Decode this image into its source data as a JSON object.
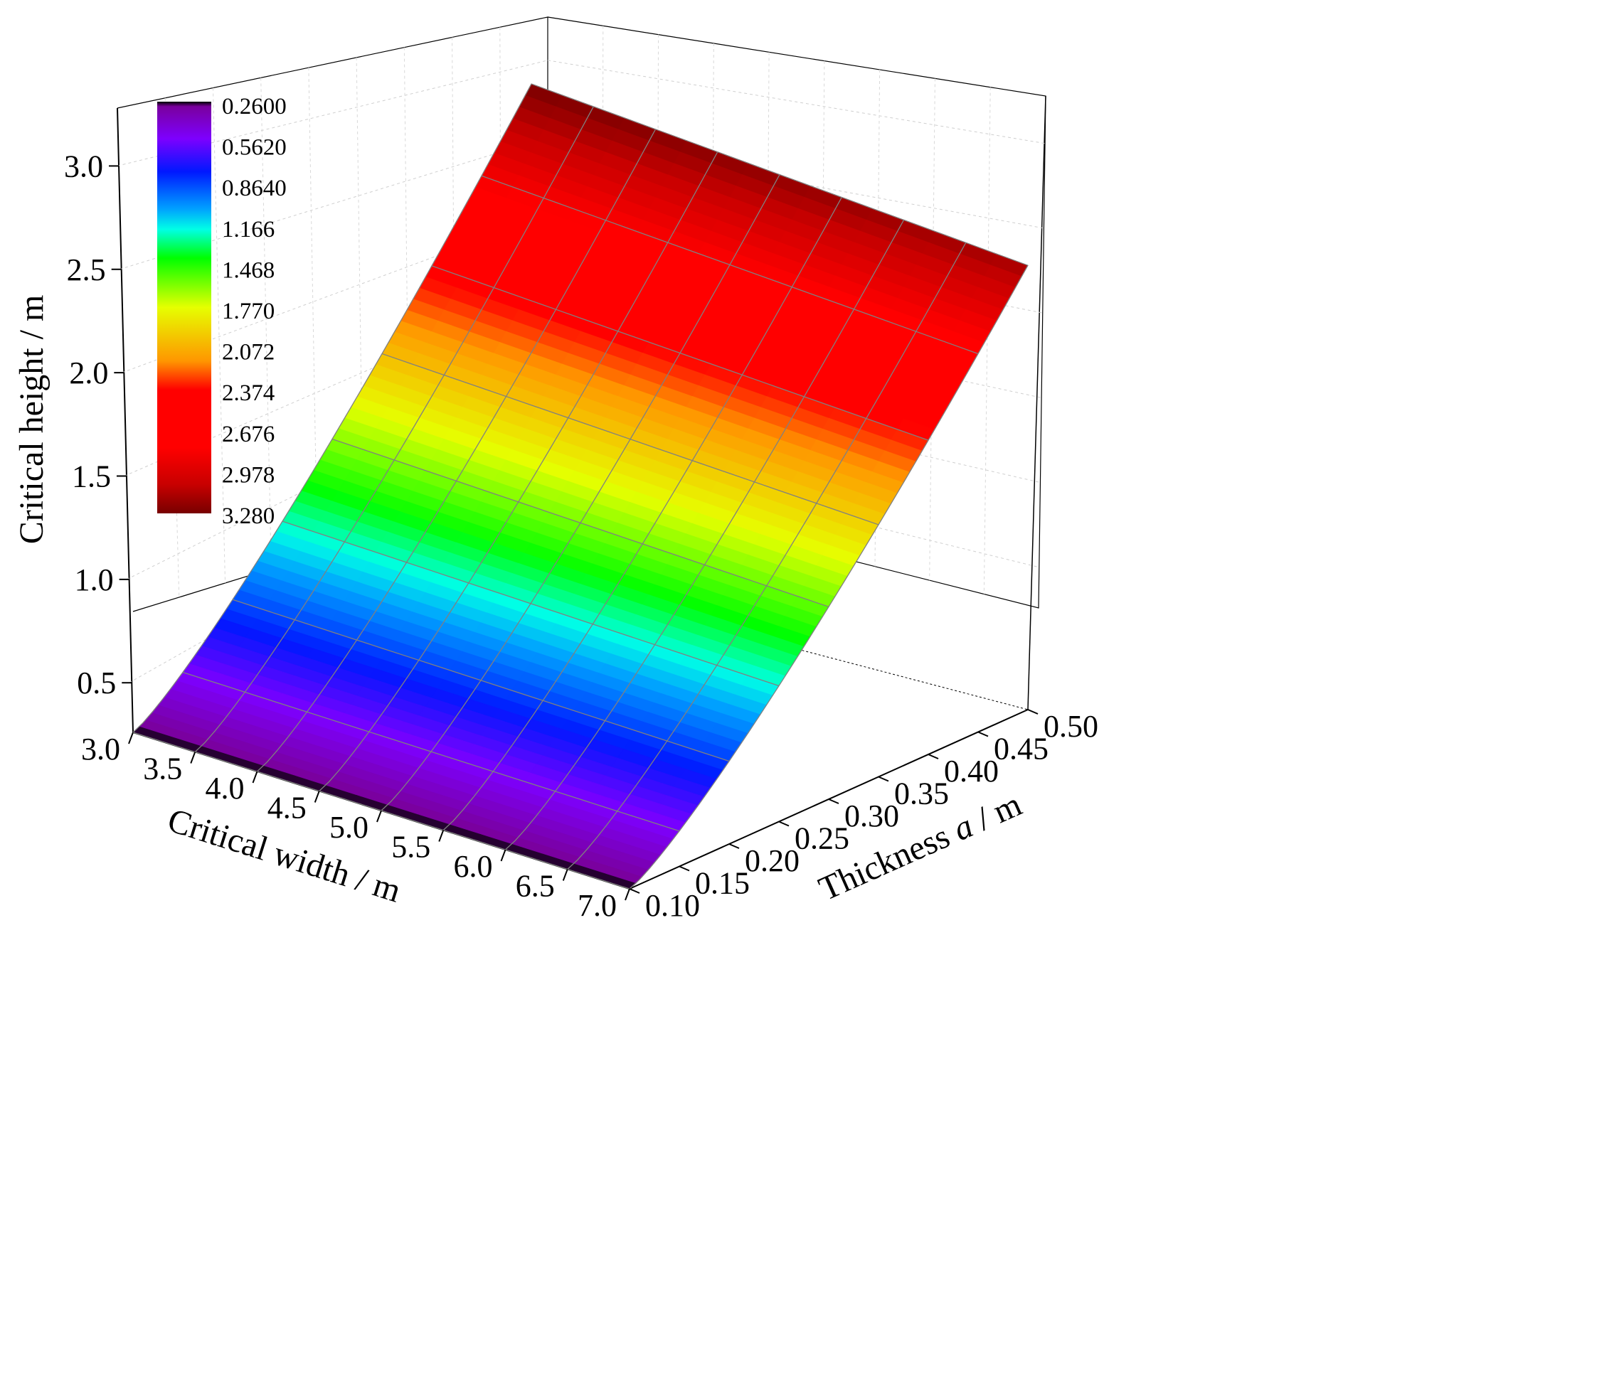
{
  "chart_data": {
    "type": "surface3d",
    "title": "",
    "xlabel": "Critical width / m",
    "ylabel_prefix": "Thickness ",
    "ylabel_var": "a",
    "ylabel_suffix": " / m",
    "zlabel": "Critical height / m",
    "x_ticks": [
      "3.0",
      "3.5",
      "4.0",
      "4.5",
      "5.0",
      "5.5",
      "6.0",
      "6.5",
      "7.0"
    ],
    "y_ticks": [
      "0.10",
      "0.15",
      "0.20",
      "0.25",
      "0.30",
      "0.35",
      "0.40",
      "0.45",
      "0.50"
    ],
    "z_ticks": [
      "0.5",
      "1.0",
      "1.5",
      "2.0",
      "2.5",
      "3.0"
    ],
    "xlim": [
      3.0,
      7.0
    ],
    "ylim": [
      0.1,
      0.5
    ],
    "zlim": [
      0.26,
      3.28
    ],
    "grid": true,
    "x": [
      3.0,
      3.5,
      4.0,
      4.5,
      5.0,
      5.5,
      6.0,
      6.5,
      7.0
    ],
    "y": [
      0.1,
      0.15,
      0.2,
      0.25,
      0.3,
      0.35,
      0.4,
      0.45,
      0.5
    ],
    "surface": "z = 0.26 + 3.02 * ((a - 0.10) / 0.40)^1.15 * (1 - 0.04 * (w - 3.0) / 4.0)",
    "colorbar": {
      "labels": [
        "0.2600",
        "0.5620",
        "0.8640",
        "1.166",
        "1.468",
        "1.770",
        "2.072",
        "2.374",
        "2.676",
        "2.978",
        "3.280"
      ],
      "colors": [
        "#000000",
        "#7a009e",
        "#7d00ff",
        "#0018ff",
        "#00a0ff",
        "#00ffe6",
        "#00ff00",
        "#e6ff00",
        "#ff9600",
        "#ff0000",
        "#ff0000",
        "#c80000",
        "#780000"
      ],
      "stops": [
        0.0,
        0.012,
        0.09,
        0.17,
        0.26,
        0.31,
        0.38,
        0.5,
        0.63,
        0.7,
        0.84,
        0.93,
        1.0
      ]
    }
  }
}
